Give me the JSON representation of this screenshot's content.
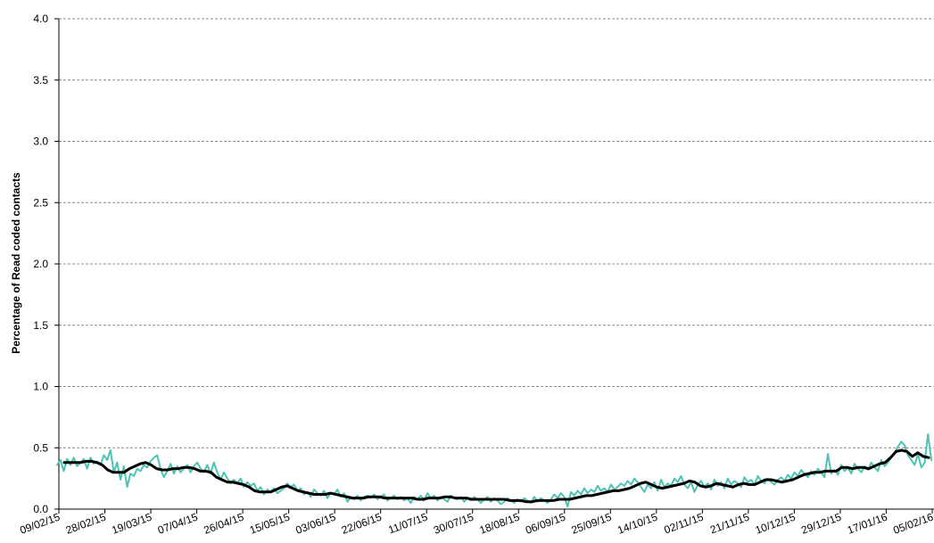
{
  "chart_data": {
    "type": "line",
    "title": "",
    "xlabel": "",
    "ylabel": "Percentage of Read coded contacts",
    "ylim": [
      0,
      4.0
    ],
    "y_ticks": [
      "0.0",
      "0.5",
      "1.0",
      "1.5",
      "2.0",
      "2.5",
      "3.0",
      "3.5",
      "4.0"
    ],
    "grid": "horizontal dashed",
    "x_ticks": [
      "09/02/15",
      "28/02/15",
      "19/03/15",
      "07/04/15",
      "26/04/15",
      "15/05/15",
      "03/06/15",
      "22/06/15",
      "11/07/15",
      "30/07/15",
      "18/08/15",
      "06/09/15",
      "25/09/15",
      "14/10/15",
      "02/11/15",
      "21/11/15",
      "10/12/15",
      "29/12/15",
      "17/01/16",
      "05/02/16"
    ],
    "x_start": "09/02/15",
    "x_end": "05/02/16",
    "series": [
      {
        "color": "#4ec3b4",
        "style": "daily",
        "values": [
          0.36,
          0.4,
          0.31,
          0.41,
          0.36,
          0.42,
          0.35,
          0.38,
          0.41,
          0.33,
          0.42,
          0.37,
          0.39,
          0.36,
          0.44,
          0.4,
          0.48,
          0.3,
          0.38,
          0.24,
          0.35,
          0.18,
          0.29,
          0.27,
          0.33,
          0.31,
          0.36,
          0.34,
          0.39,
          0.42,
          0.44,
          0.33,
          0.26,
          0.31,
          0.37,
          0.29,
          0.35,
          0.3,
          0.33,
          0.36,
          0.3,
          0.35,
          0.38,
          0.33,
          0.3,
          0.36,
          0.29,
          0.38,
          0.3,
          0.24,
          0.3,
          0.25,
          0.21,
          0.24,
          0.21,
          0.25,
          0.18,
          0.22,
          0.19,
          0.21,
          0.15,
          0.18,
          0.12,
          0.16,
          0.14,
          0.17,
          0.13,
          0.15,
          0.17,
          0.21,
          0.18,
          0.2,
          0.15,
          0.17,
          0.12,
          0.14,
          0.1,
          0.16,
          0.13,
          0.11,
          0.15,
          0.09,
          0.13,
          0.12,
          0.16,
          0.1,
          0.13,
          0.06,
          0.1,
          0.08,
          0.11,
          0.07,
          0.1,
          0.11,
          0.09,
          0.12,
          0.08,
          0.1,
          0.12,
          0.07,
          0.09,
          0.11,
          0.08,
          0.1,
          0.07,
          0.09,
          0.05,
          0.1,
          0.08,
          0.11,
          0.07,
          0.13,
          0.09,
          0.11,
          0.07,
          0.1,
          0.08,
          0.06,
          0.11,
          0.09,
          0.08,
          0.1,
          0.06,
          0.09,
          0.07,
          0.1,
          0.08,
          0.05,
          0.08,
          0.1,
          0.06,
          0.09,
          0.07,
          0.04,
          0.06,
          0.09,
          0.07,
          0.05,
          0.08,
          0.06,
          0.09,
          0.07,
          0.05,
          0.1,
          0.06,
          0.09,
          0.07,
          0.05,
          0.08,
          0.12,
          0.09,
          0.13,
          0.1,
          0.02,
          0.14,
          0.11,
          0.15,
          0.12,
          0.17,
          0.13,
          0.16,
          0.14,
          0.19,
          0.15,
          0.17,
          0.14,
          0.2,
          0.16,
          0.18,
          0.21,
          0.19,
          0.23,
          0.2,
          0.25,
          0.22,
          0.18,
          0.14,
          0.2,
          0.17,
          0.22,
          0.15,
          0.24,
          0.18,
          0.21,
          0.19,
          0.25,
          0.22,
          0.27,
          0.2,
          0.17,
          0.22,
          0.14,
          0.2,
          0.23,
          0.18,
          0.21,
          0.16,
          0.24,
          0.19,
          0.22,
          0.17,
          0.25,
          0.2,
          0.23,
          0.21,
          0.18,
          0.26,
          0.22,
          0.24,
          0.2,
          0.27,
          0.23,
          0.21,
          0.25,
          0.22,
          0.2,
          0.24,
          0.26,
          0.23,
          0.28,
          0.25,
          0.3,
          0.27,
          0.32,
          0.29,
          0.26,
          0.31,
          0.28,
          0.33,
          0.3,
          0.26,
          0.45,
          0.29,
          0.32,
          0.28,
          0.36,
          0.31,
          0.34,
          0.29,
          0.37,
          0.33,
          0.3,
          0.35,
          0.32,
          0.38,
          0.34,
          0.31,
          0.4,
          0.35,
          0.38,
          0.42,
          0.46,
          0.51,
          0.55,
          0.52,
          0.44,
          0.4,
          0.36,
          0.45,
          0.34,
          0.38,
          0.61,
          0.4
        ]
      },
      {
        "color": "#000000",
        "style": "moving average",
        "values": [
          0.38,
          0.38,
          0.38,
          0.38,
          0.39,
          0.39,
          0.38,
          0.36,
          0.32,
          0.3,
          0.3,
          0.3,
          0.33,
          0.35,
          0.37,
          0.38,
          0.36,
          0.33,
          0.32,
          0.32,
          0.33,
          0.33,
          0.34,
          0.34,
          0.33,
          0.31,
          0.31,
          0.3,
          0.26,
          0.24,
          0.22,
          0.22,
          0.21,
          0.2,
          0.18,
          0.15,
          0.14,
          0.14,
          0.14,
          0.16,
          0.18,
          0.19,
          0.17,
          0.15,
          0.14,
          0.13,
          0.12,
          0.12,
          0.12,
          0.13,
          0.12,
          0.11,
          0.1,
          0.09,
          0.09,
          0.09,
          0.1,
          0.1,
          0.1,
          0.09,
          0.09,
          0.09,
          0.09,
          0.09,
          0.09,
          0.08,
          0.08,
          0.09,
          0.09,
          0.09,
          0.1,
          0.1,
          0.09,
          0.09,
          0.09,
          0.08,
          0.08,
          0.08,
          0.08,
          0.08,
          0.08,
          0.08,
          0.07,
          0.07,
          0.07,
          0.06,
          0.06,
          0.07,
          0.07,
          0.07,
          0.07,
          0.08,
          0.08,
          0.08,
          0.09,
          0.1,
          0.11,
          0.11,
          0.12,
          0.13,
          0.14,
          0.15,
          0.15,
          0.16,
          0.17,
          0.19,
          0.21,
          0.22,
          0.2,
          0.18,
          0.17,
          0.18,
          0.19,
          0.2,
          0.21,
          0.23,
          0.22,
          0.19,
          0.18,
          0.19,
          0.21,
          0.2,
          0.19,
          0.18,
          0.2,
          0.21,
          0.2,
          0.2,
          0.22,
          0.24,
          0.24,
          0.23,
          0.22,
          0.23,
          0.24,
          0.26,
          0.28,
          0.29,
          0.3,
          0.3,
          0.31,
          0.31,
          0.31,
          0.34,
          0.34,
          0.33,
          0.34,
          0.34,
          0.33,
          0.35,
          0.37,
          0.38,
          0.42,
          0.47,
          0.48,
          0.47,
          0.43,
          0.46,
          0.43,
          0.42
        ]
      }
    ]
  }
}
